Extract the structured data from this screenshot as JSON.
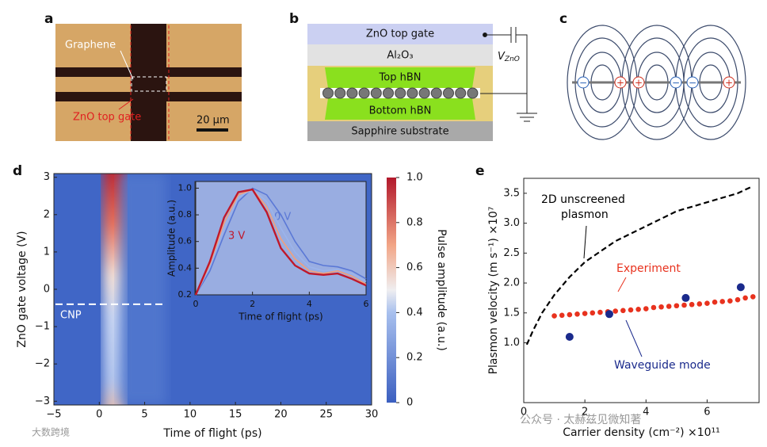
{
  "panels": {
    "a": {
      "label": "a",
      "graphene": "Graphene",
      "gate": "ZnO top gate",
      "scale": "20 μm"
    },
    "b": {
      "label": "b",
      "zno": "ZnO top gate",
      "al2o3": "Al₂O₃",
      "top": "Top hBN",
      "bottom": "Bottom hBN",
      "substrate": "Sapphire substrate",
      "v": "V",
      "vsub": "ZnO"
    },
    "c": {
      "label": "c",
      "charges": [
        "−",
        "+",
        "+",
        "−",
        "−",
        "+"
      ]
    },
    "d": {
      "label": "d"
    },
    "e": {
      "label": "e"
    }
  },
  "watermarks": [
    "公众号 · 太赫兹见微知著",
    "大数跨境"
  ],
  "chart_data": [
    {
      "type": "heatmap",
      "xlabel": "Time of flight (ps)",
      "ylabel": "ZnO gate voltage (V)",
      "annotation": "CNP",
      "annotation_y": -0.4,
      "xlim": [
        -5,
        30
      ],
      "xticks": [
        {
          "value": -5,
          "label": "−5"
        },
        0,
        5,
        10,
        15,
        20,
        25,
        30
      ],
      "ylim": [
        -3.1,
        3.1
      ],
      "yticks": [
        {
          "value": -3,
          "label": "−3"
        },
        {
          "value": -2,
          "label": "−2"
        },
        {
          "value": -1,
          "label": "−1"
        },
        0,
        1,
        2,
        3
      ],
      "colorbar": {
        "label": "Pulse amplitude (a.u.)",
        "lim": [
          0,
          1
        ],
        "ticks": [
          0,
          0.2,
          0.4,
          0.6,
          0.8,
          {
            "value": 1,
            "label": "1.0"
          }
        ]
      }
    },
    {
      "type": "line",
      "xlabel": "Time of flight (ps)",
      "ylabel": "Amplitude (a.u.)",
      "x": [
        0,
        0.5,
        1,
        1.5,
        2,
        2.5,
        3,
        3.5,
        4,
        4.5,
        5,
        5.5,
        6
      ],
      "xlim": [
        0,
        6
      ],
      "xticks": [
        0,
        2,
        4,
        6
      ],
      "ylim": [
        0.2,
        1.05
      ],
      "yticks": [
        0.2,
        0.4,
        0.6,
        0.8,
        {
          "value": 1,
          "label": "1.0"
        }
      ],
      "series": [
        {
          "name": "0 V",
          "color": "#5a78d6",
          "values": [
            0.2,
            0.38,
            0.65,
            0.9,
            1.0,
            0.95,
            0.8,
            0.6,
            0.45,
            0.42,
            0.41,
            0.38,
            0.32
          ]
        },
        {
          "color": "#9bb4ec",
          "values": [
            0.2,
            0.41,
            0.7,
            0.93,
            0.99,
            0.9,
            0.7,
            0.52,
            0.41,
            0.38,
            0.39,
            0.36,
            0.3
          ]
        },
        {
          "color": "#f2a07a",
          "values": [
            0.2,
            0.43,
            0.74,
            0.95,
            0.99,
            0.86,
            0.62,
            0.47,
            0.38,
            0.36,
            0.38,
            0.34,
            0.28
          ]
        },
        {
          "name": "3 V",
          "color": "#c0182a",
          "values": [
            0.2,
            0.45,
            0.78,
            0.97,
            0.99,
            0.82,
            0.55,
            0.42,
            0.36,
            0.35,
            0.36,
            0.32,
            0.27
          ]
        }
      ]
    },
    {
      "type": "scatter",
      "xlabel": "Carrier density (cm⁻²) ×10¹¹",
      "ylabel": "Plasmon velocity (m s⁻¹) ×10⁷",
      "xlim": [
        0,
        7.7
      ],
      "xticks": [
        0,
        2,
        4,
        6
      ],
      "ylim": [
        0,
        3.75
      ],
      "yticks": [
        {
          "value": 1,
          "label": "1.0"
        },
        1.5,
        {
          "value": 2,
          "label": "2.0"
        },
        2.5,
        {
          "value": 3,
          "label": "3.0"
        },
        3.5
      ],
      "annotations": [
        "2D unscreened",
        "plasmon",
        "Experiment",
        "Waveguide mode"
      ],
      "series": [
        {
          "kind": "dashed",
          "color": "#000000",
          "x": [
            0.1,
            0.3,
            0.6,
            1,
            1.5,
            2,
            3,
            4,
            5,
            6,
            7,
            7.5
          ],
          "values": [
            0.97,
            1.2,
            1.5,
            1.8,
            2.1,
            2.35,
            2.7,
            2.95,
            3.2,
            3.35,
            3.5,
            3.62
          ]
        },
        {
          "kind": "dots",
          "color": "#e8321e",
          "x": [
            1,
            1.25,
            1.5,
            1.75,
            2,
            2.25,
            2.5,
            2.75,
            3,
            3.25,
            3.5,
            3.75,
            4,
            4.25,
            4.5,
            4.75,
            5,
            5.25,
            5.5,
            5.75,
            6,
            6.25,
            6.5,
            6.75,
            7,
            7.25,
            7.5
          ],
          "values": [
            1.45,
            1.46,
            1.47,
            1.48,
            1.49,
            1.5,
            1.51,
            1.52,
            1.53,
            1.54,
            1.55,
            1.56,
            1.57,
            1.59,
            1.6,
            1.61,
            1.62,
            1.63,
            1.64,
            1.65,
            1.66,
            1.68,
            1.69,
            1.7,
            1.72,
            1.75,
            1.77
          ]
        },
        {
          "kind": "markers",
          "color": "#1a2a8c",
          "x": [
            1.5,
            2.8,
            5.3,
            7.1
          ],
          "values": [
            1.1,
            1.48,
            1.75,
            1.93
          ]
        }
      ]
    }
  ]
}
